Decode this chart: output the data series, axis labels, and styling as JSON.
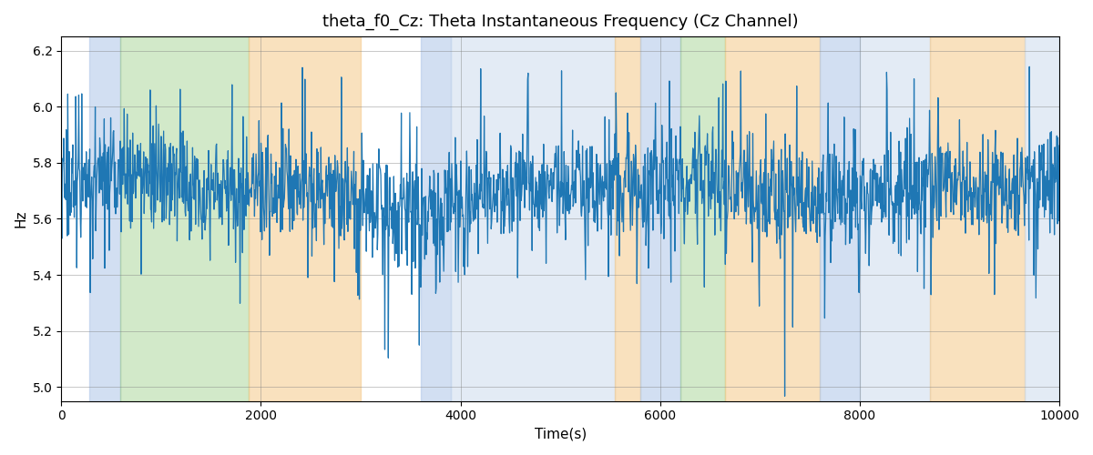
{
  "title": "theta_f0_Cz: Theta Instantaneous Frequency (Cz Channel)",
  "xlabel": "Time(s)",
  "ylabel": "Hz",
  "xlim": [
    0,
    10000
  ],
  "ylim": [
    4.95,
    6.25
  ],
  "yticks": [
    5.0,
    5.2,
    5.4,
    5.6,
    5.8,
    6.0,
    6.2
  ],
  "xticks": [
    0,
    2000,
    4000,
    6000,
    8000,
    10000
  ],
  "line_color": "#1f77b4",
  "line_width": 0.9,
  "background_color": "#ffffff",
  "bands": [
    {
      "xmin": 280,
      "xmax": 590,
      "color": "#aec6e8",
      "alpha": 0.55
    },
    {
      "xmin": 590,
      "xmax": 1880,
      "color": "#90c878",
      "alpha": 0.4
    },
    {
      "xmin": 1880,
      "xmax": 3000,
      "color": "#f5c98a",
      "alpha": 0.55
    },
    {
      "xmin": 3600,
      "xmax": 3900,
      "color": "#aec6e8",
      "alpha": 0.55
    },
    {
      "xmin": 3900,
      "xmax": 5550,
      "color": "#c8d9ed",
      "alpha": 0.5
    },
    {
      "xmin": 5550,
      "xmax": 5800,
      "color": "#f5c98a",
      "alpha": 0.55
    },
    {
      "xmin": 5800,
      "xmax": 6200,
      "color": "#aec6e8",
      "alpha": 0.55
    },
    {
      "xmin": 6200,
      "xmax": 6650,
      "color": "#90c878",
      "alpha": 0.4
    },
    {
      "xmin": 6650,
      "xmax": 7600,
      "color": "#f5c98a",
      "alpha": 0.55
    },
    {
      "xmin": 7600,
      "xmax": 8000,
      "color": "#aec6e8",
      "alpha": 0.55
    },
    {
      "xmin": 8000,
      "xmax": 8700,
      "color": "#c8d9ed",
      "alpha": 0.5
    },
    {
      "xmin": 8700,
      "xmax": 9650,
      "color": "#f5c98a",
      "alpha": 0.55
    },
    {
      "xmin": 9650,
      "xmax": 10000,
      "color": "#c8d9ed",
      "alpha": 0.5
    }
  ],
  "seed": 17,
  "n_points": 2000,
  "mean_freq": 5.695,
  "noise_std": 0.095,
  "spike_prob": 0.06,
  "spike_mag_low": 0.15,
  "spike_mag_high": 0.38
}
